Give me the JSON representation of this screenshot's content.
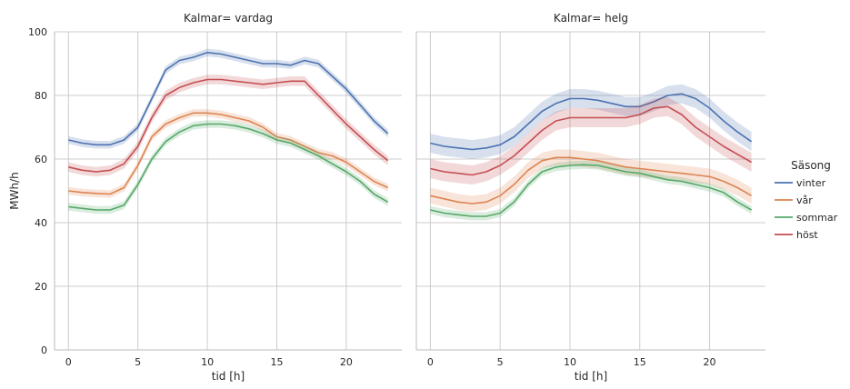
{
  "chart_data": {
    "type": "line",
    "ylabel": "MWh/h",
    "xlabel": "tid [h]",
    "xticks": [
      0,
      5,
      10,
      15,
      20
    ],
    "yticks": [
      0,
      20,
      40,
      60,
      80,
      100
    ],
    "xlim": [
      -1,
      24
    ],
    "ylim": [
      0,
      100
    ],
    "grid": true,
    "legend": {
      "title": "Säsong",
      "placement": "right",
      "entries": [
        {
          "name": "vinter",
          "color": "#4c72b0"
        },
        {
          "name": "vår",
          "color": "#dd8452"
        },
        {
          "name": "sommar",
          "color": "#55a868"
        },
        {
          "name": "höst",
          "color": "#c44e52"
        }
      ]
    },
    "panels": [
      {
        "title": "Kalmar= vardag",
        "series": [
          {
            "name": "vinter",
            "color": "#4c72b0",
            "band": 1.2,
            "x": [
              0,
              1,
              2,
              3,
              4,
              5,
              6,
              7,
              8,
              9,
              10,
              11,
              12,
              13,
              14,
              15,
              16,
              17,
              18,
              19,
              20,
              21,
              22,
              23
            ],
            "y": [
              66,
              65,
              64.5,
              64.5,
              66,
              70,
              79,
              88,
              91,
              92,
              93.5,
              93,
              92,
              91,
              90,
              90,
              89.5,
              91,
              90,
              86,
              82,
              77,
              72,
              68
            ]
          },
          {
            "name": "vår",
            "color": "#dd8452",
            "band": 1.2,
            "x": [
              0,
              1,
              2,
              3,
              4,
              5,
              6,
              7,
              8,
              9,
              10,
              11,
              12,
              13,
              14,
              15,
              16,
              17,
              18,
              19,
              20,
              21,
              22,
              23
            ],
            "y": [
              50,
              49.5,
              49.2,
              49,
              51,
              58,
              67,
              71,
              73,
              74.5,
              74.5,
              74,
              73,
              72,
              70,
              67,
              66,
              64,
              62,
              61,
              59,
              56,
              53,
              51
            ]
          },
          {
            "name": "sommar",
            "color": "#55a868",
            "band": 1.2,
            "x": [
              0,
              1,
              2,
              3,
              4,
              5,
              6,
              7,
              8,
              9,
              10,
              11,
              12,
              13,
              14,
              15,
              16,
              17,
              18,
              19,
              20,
              21,
              22,
              23
            ],
            "y": [
              45,
              44.5,
              44,
              44,
              45.5,
              52,
              60,
              65.5,
              68.5,
              70.5,
              71,
              71,
              70.5,
              69.5,
              68,
              66,
              65,
              63,
              61,
              58.5,
              56,
              53,
              49,
              46.5
            ]
          },
          {
            "name": "höst",
            "color": "#c44e52",
            "band": 1.5,
            "x": [
              0,
              1,
              2,
              3,
              4,
              5,
              6,
              7,
              8,
              9,
              10,
              11,
              12,
              13,
              14,
              15,
              16,
              17,
              18,
              19,
              20,
              21,
              22,
              23
            ],
            "y": [
              57.5,
              56.5,
              56,
              56.5,
              58.5,
              64,
              73,
              80,
              82.5,
              84,
              85,
              85,
              84.5,
              84,
              83.5,
              84,
              84.5,
              84.5,
              80,
              75.5,
              71,
              67,
              63,
              59.5
            ]
          }
        ]
      },
      {
        "title": "Kalmar= helg",
        "series": [
          {
            "name": "vinter",
            "color": "#4c72b0",
            "band": 3,
            "x": [
              0,
              1,
              2,
              3,
              4,
              5,
              6,
              7,
              8,
              9,
              10,
              11,
              12,
              13,
              14,
              15,
              16,
              17,
              18,
              19,
              20,
              21,
              22,
              23
            ],
            "y": [
              65,
              64,
              63.5,
              63,
              63.5,
              64.5,
              67,
              71,
              75,
              77.5,
              79,
              79,
              78.5,
              77.5,
              76.5,
              76.5,
              78,
              80,
              80.5,
              79,
              76,
              72,
              68.5,
              65.5
            ]
          },
          {
            "name": "vår",
            "color": "#dd8452",
            "band": 2.5,
            "x": [
              0,
              1,
              2,
              3,
              4,
              5,
              6,
              7,
              8,
              9,
              10,
              11,
              12,
              13,
              14,
              15,
              16,
              17,
              18,
              19,
              20,
              21,
              22,
              23
            ],
            "y": [
              48.5,
              47.5,
              46.5,
              46,
              46.5,
              48.5,
              52,
              56.5,
              59.5,
              60.5,
              60.5,
              60,
              59.5,
              58.5,
              57.5,
              57,
              56.5,
              56,
              55.5,
              55,
              54.5,
              53,
              51,
              48.5
            ]
          },
          {
            "name": "sommar",
            "color": "#55a868",
            "band": 1.3,
            "x": [
              0,
              1,
              2,
              3,
              4,
              5,
              6,
              7,
              8,
              9,
              10,
              11,
              12,
              13,
              14,
              15,
              16,
              17,
              18,
              19,
              20,
              21,
              22,
              23
            ],
            "y": [
              44,
              43,
              42.5,
              42,
              42,
              43,
              46.5,
              52,
              56,
              57.5,
              58,
              58.2,
              58,
              57,
              56,
              55.5,
              54.5,
              53.5,
              53,
              52,
              51,
              49.5,
              46.5,
              44
            ]
          },
          {
            "name": "höst",
            "color": "#c44e52",
            "band": 3,
            "x": [
              0,
              1,
              2,
              3,
              4,
              5,
              6,
              7,
              8,
              9,
              10,
              11,
              12,
              13,
              14,
              15,
              16,
              17,
              18,
              19,
              20,
              21,
              22,
              23
            ],
            "y": [
              57,
              56,
              55.5,
              55,
              56,
              58,
              61,
              65,
              69,
              72,
              73,
              73,
              73,
              73,
              73,
              74,
              76,
              76.5,
              74,
              70,
              67,
              64,
              61.5,
              59
            ]
          }
        ]
      }
    ]
  }
}
